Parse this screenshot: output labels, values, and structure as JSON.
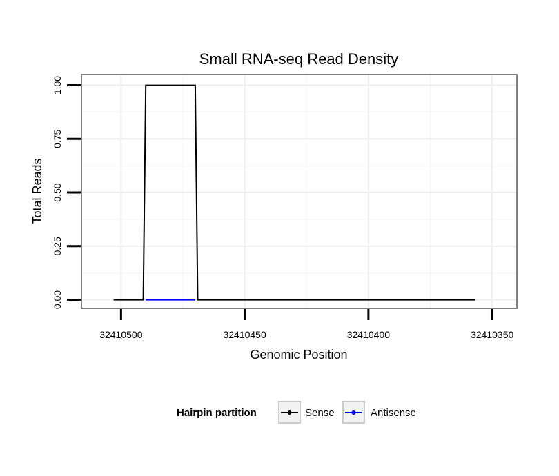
{
  "chart_data": {
    "type": "line",
    "title": "Small RNA-seq Read Density",
    "xlabel": "Genomic Position",
    "ylabel": "Total Reads",
    "x_reversed": true,
    "xlim": [
      32410516,
      32410340
    ],
    "ylim": [
      -0.04,
      1.05
    ],
    "x_ticks": [
      32410500,
      32410450,
      32410400,
      32410350
    ],
    "x_tick_labels": [
      "32410500",
      "32410450",
      "32410400",
      "32410350"
    ],
    "y_ticks": [
      0,
      0.25,
      0.5,
      0.75,
      1.0
    ],
    "y_tick_labels": [
      "0.00",
      "0.25",
      "0.50",
      "0.75",
      "1.00"
    ],
    "grid": true,
    "legend": {
      "title": "Hairpin partition",
      "placement": "bottom",
      "entries": [
        {
          "name": "Sense",
          "color": "#000000"
        },
        {
          "name": "Antisense",
          "color": "#0000ff"
        }
      ]
    },
    "series": [
      {
        "name": "Sense",
        "color": "#000000",
        "x": [
          32410503,
          32410491,
          32410490,
          32410470,
          32410469,
          32410357
        ],
        "y": [
          0,
          0,
          1,
          1,
          0,
          0
        ]
      },
      {
        "name": "Antisense",
        "color": "#0000ff",
        "x": [
          32410490,
          32410470
        ],
        "y": [
          0,
          0
        ]
      }
    ]
  }
}
